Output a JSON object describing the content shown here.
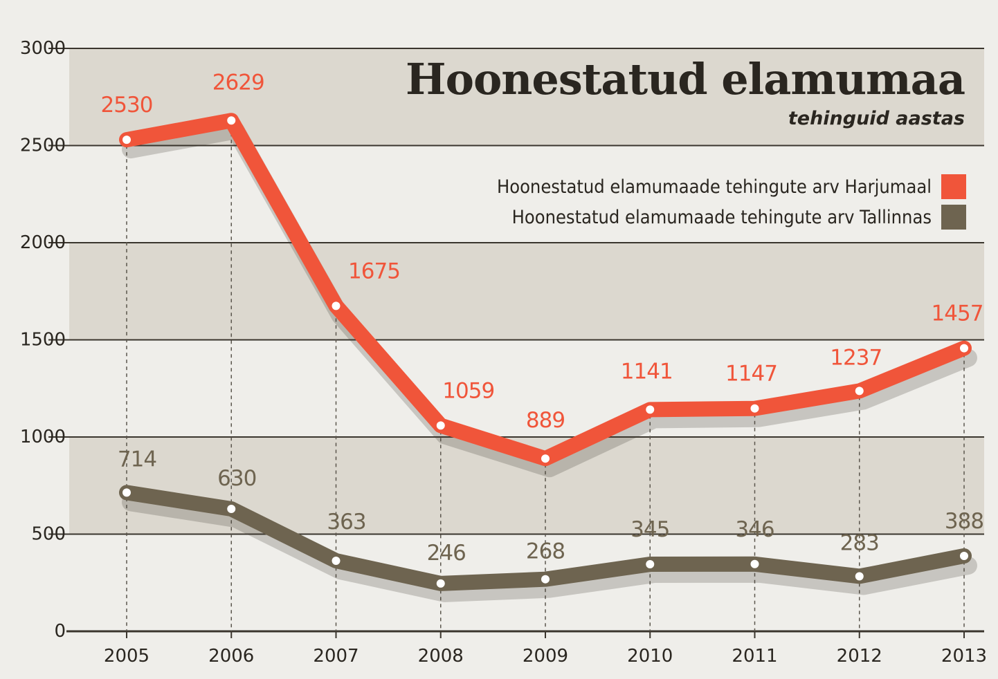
{
  "chart_data": {
    "type": "line",
    "title": "Hoonestatud elamumaa",
    "subtitle": "tehinguid aastas",
    "categories": [
      "2005",
      "2006",
      "2007",
      "2008",
      "2009",
      "2010",
      "2011",
      "2012",
      "2013"
    ],
    "y_ticks": [
      "3000",
      "2500",
      "2000",
      "1500",
      "1000",
      "500",
      "0"
    ],
    "ylim": [
      0,
      3000
    ],
    "grid": true,
    "legend_position": "top-right",
    "series": [
      {
        "name": "Hoonestatud elamumaade tehingute arv Harjumaal",
        "color": "#f0553a",
        "values": [
          2530,
          2629,
          1675,
          1059,
          889,
          1141,
          1147,
          1237,
          1457
        ]
      },
      {
        "name": "Hoonestatud elamumaade tehingute arv Tallinnas",
        "color": "#6e6450",
        "values": [
          714,
          630,
          363,
          246,
          268,
          345,
          346,
          283,
          388
        ]
      }
    ]
  }
}
